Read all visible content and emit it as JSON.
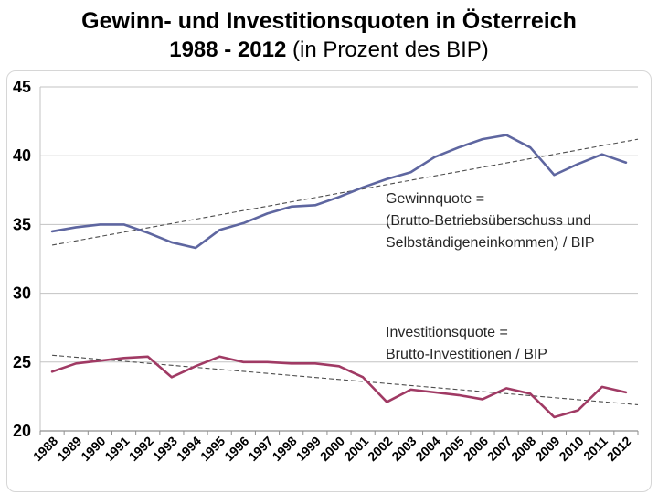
{
  "title": {
    "line1": "Gewinn- und Investitionsquoten in Österreich",
    "line2_bold": "1988 - 2012",
    "line2_regular": " (in Prozent des BIP)"
  },
  "chart_data": {
    "type": "line",
    "x": [
      1988,
      1989,
      1990,
      1991,
      1992,
      1993,
      1994,
      1995,
      1996,
      1997,
      1998,
      1999,
      2000,
      2001,
      2002,
      2003,
      2004,
      2005,
      2006,
      2007,
      2008,
      2009,
      2010,
      2011,
      2012
    ],
    "series": [
      {
        "name": "Gewinnquote",
        "color": "#5e66a0",
        "values": [
          34.5,
          34.8,
          35.0,
          35.0,
          34.4,
          33.7,
          33.3,
          34.6,
          35.1,
          35.8,
          36.3,
          36.4,
          37.0,
          37.7,
          38.3,
          38.8,
          39.9,
          40.6,
          41.2,
          41.5,
          40.6,
          38.6,
          39.4,
          40.1,
          39.5
        ]
      },
      {
        "name": "Investitionsquote",
        "color": "#a03a64",
        "values": [
          24.3,
          24.9,
          25.1,
          25.3,
          25.4,
          23.9,
          24.7,
          25.4,
          25.0,
          25.0,
          24.9,
          24.9,
          24.7,
          23.9,
          22.1,
          23.0,
          22.8,
          22.6,
          22.3,
          23.1,
          22.7,
          21.0,
          21.5,
          23.2,
          22.8
        ]
      }
    ],
    "trendlines": [
      {
        "for": "Gewinnquote",
        "start_year": 1988,
        "start_value": 33.5,
        "end_year": 2012.5,
        "end_value": 41.2
      },
      {
        "for": "Investitionsquote",
        "start_year": 1988,
        "start_value": 25.5,
        "end_year": 2012.5,
        "end_value": 21.9
      }
    ],
    "ylim": [
      20,
      45
    ],
    "yticks": [
      20,
      25,
      30,
      35,
      40,
      45
    ],
    "grid": true,
    "legend_position": "none",
    "annotations": [
      {
        "lines": [
          "Gewinnquote =",
          "(Brutto-Betriebsüberschuss und",
          "Selbständigeneinkommen) / BIP"
        ]
      },
      {
        "lines": [
          "Investitionsquote =",
          "Brutto-Investitionen / BIP"
        ]
      }
    ],
    "colors": {
      "gridline": "#c3c3c3",
      "axis": "#8f8f8f",
      "trendline": "#4d4d4d",
      "tick_label": "#000000"
    }
  }
}
